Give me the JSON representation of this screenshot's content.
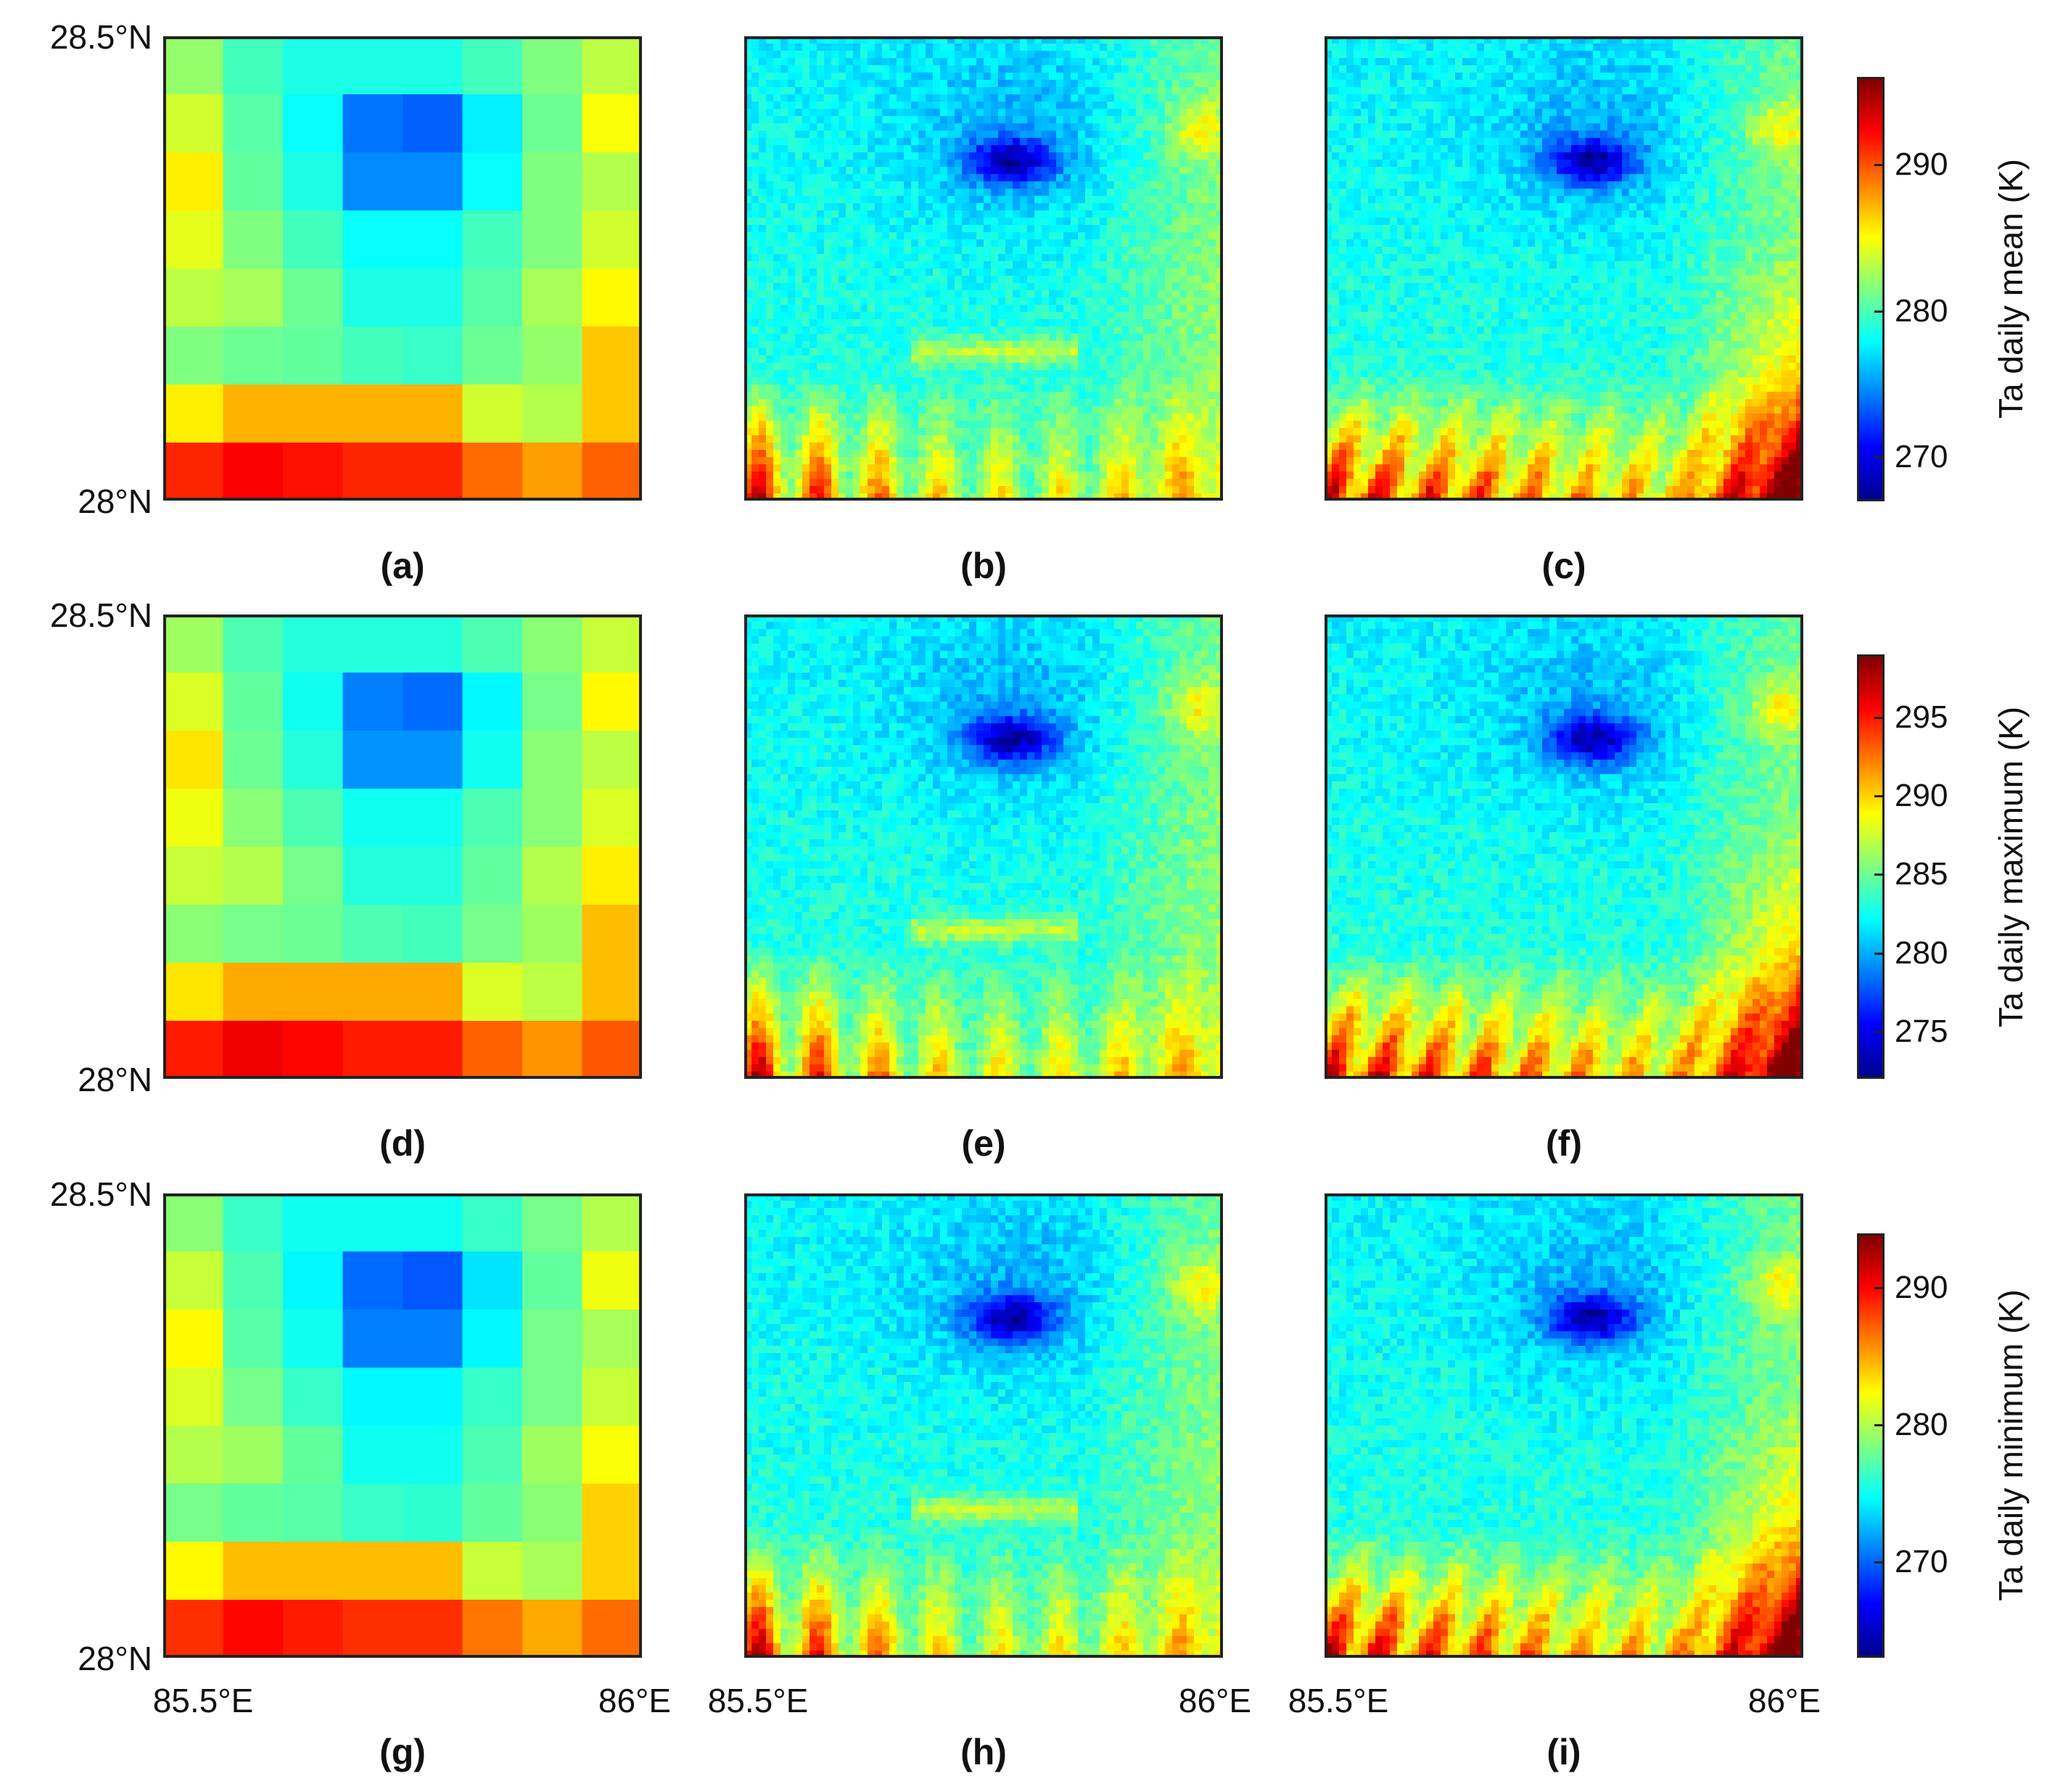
{
  "panels": [
    {
      "label": "(a)",
      "type": "coarse"
    },
    {
      "label": "(b)",
      "type": "fine_b"
    },
    {
      "label": "(c)",
      "type": "fine_c"
    },
    {
      "label": "(d)",
      "type": "coarse"
    },
    {
      "label": "(e)",
      "type": "fine_b"
    },
    {
      "label": "(f)",
      "type": "fine_c"
    },
    {
      "label": "(g)",
      "type": "coarse"
    },
    {
      "label": "(h)",
      "type": "fine_b"
    },
    {
      "label": "(i)",
      "type": "fine_c"
    }
  ],
  "lat_labels": {
    "top": "28.5°N",
    "bottom": "28°N"
  },
  "lon_labels": {
    "left": "85.5°E",
    "right": "86°E"
  },
  "colorbars": [
    {
      "title": "Ta daily mean (K)",
      "min": 267,
      "max": 296,
      "ticks": [
        {
          "value": 270,
          "label": "270"
        },
        {
          "value": 280,
          "label": "280"
        },
        {
          "value": 290,
          "label": "290"
        }
      ]
    },
    {
      "title": "Ta daily maximum (K)",
      "min": 272,
      "max": 299,
      "ticks": [
        {
          "value": 275,
          "label": "275"
        },
        {
          "value": 280,
          "label": "280"
        },
        {
          "value": 285,
          "label": "285"
        },
        {
          "value": 290,
          "label": "290"
        },
        {
          "value": 295,
          "label": "295"
        }
      ]
    },
    {
      "title": "Ta daily minimum (K)",
      "min": 263,
      "max": 294,
      "ticks": [
        {
          "value": 270,
          "label": "270"
        },
        {
          "value": 280,
          "label": "280"
        },
        {
          "value": 290,
          "label": "290"
        }
      ]
    }
  ],
  "coarse_grid_normalized": [
    [
      0.52,
      0.44,
      0.4,
      0.4,
      0.4,
      0.44,
      0.5,
      0.56
    ],
    [
      0.58,
      0.46,
      0.38,
      0.24,
      0.22,
      0.36,
      0.48,
      0.62
    ],
    [
      0.64,
      0.47,
      0.4,
      0.26,
      0.26,
      0.38,
      0.5,
      0.55
    ],
    [
      0.6,
      0.5,
      0.44,
      0.38,
      0.38,
      0.44,
      0.5,
      0.58
    ],
    [
      0.56,
      0.54,
      0.48,
      0.4,
      0.4,
      0.46,
      0.54,
      0.63
    ],
    [
      0.5,
      0.48,
      0.47,
      0.44,
      0.43,
      0.48,
      0.52,
      0.68
    ],
    [
      0.64,
      0.7,
      0.7,
      0.7,
      0.7,
      0.58,
      0.55,
      0.68
    ],
    [
      0.84,
      0.88,
      0.86,
      0.84,
      0.84,
      0.77,
      0.72,
      0.78
    ]
  ]
}
